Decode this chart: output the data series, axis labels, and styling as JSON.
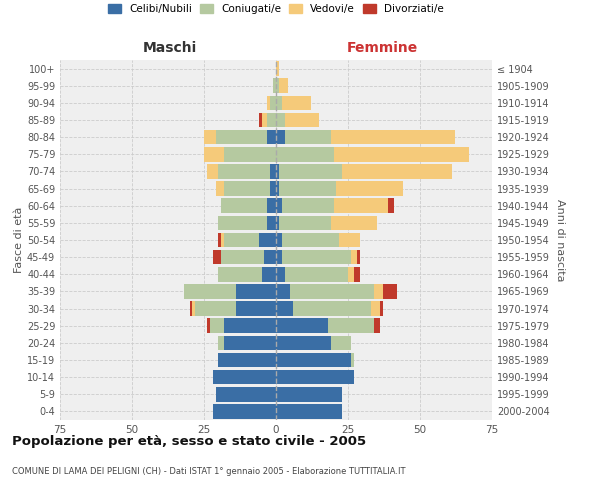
{
  "age_groups": [
    "0-4",
    "5-9",
    "10-14",
    "15-19",
    "20-24",
    "25-29",
    "30-34",
    "35-39",
    "40-44",
    "45-49",
    "50-54",
    "55-59",
    "60-64",
    "65-69",
    "70-74",
    "75-79",
    "80-84",
    "85-89",
    "90-94",
    "95-99",
    "100+"
  ],
  "birth_years": [
    "2000-2004",
    "1995-1999",
    "1990-1994",
    "1985-1989",
    "1980-1984",
    "1975-1979",
    "1970-1974",
    "1965-1969",
    "1960-1964",
    "1955-1959",
    "1950-1954",
    "1945-1949",
    "1940-1944",
    "1935-1939",
    "1930-1934",
    "1925-1929",
    "1920-1924",
    "1915-1919",
    "1910-1914",
    "1905-1909",
    "≤ 1904"
  ],
  "maschi": {
    "celibe": [
      22,
      21,
      22,
      20,
      18,
      18,
      14,
      14,
      5,
      4,
      6,
      3,
      3,
      2,
      2,
      0,
      3,
      0,
      0,
      0,
      0
    ],
    "coniugato": [
      0,
      0,
      0,
      0,
      2,
      5,
      14,
      18,
      15,
      15,
      12,
      17,
      16,
      16,
      18,
      18,
      18,
      3,
      2,
      1,
      0
    ],
    "vedovo": [
      0,
      0,
      0,
      0,
      0,
      0,
      1,
      0,
      0,
      0,
      1,
      0,
      0,
      3,
      4,
      7,
      4,
      2,
      1,
      0,
      0
    ],
    "divorziato": [
      0,
      0,
      0,
      0,
      0,
      1,
      1,
      0,
      0,
      3,
      1,
      0,
      0,
      0,
      0,
      0,
      0,
      1,
      0,
      0,
      0
    ]
  },
  "femmine": {
    "nubile": [
      23,
      23,
      27,
      26,
      19,
      18,
      6,
      5,
      3,
      2,
      2,
      1,
      2,
      1,
      1,
      0,
      3,
      0,
      0,
      0,
      0
    ],
    "coniugata": [
      0,
      0,
      0,
      1,
      7,
      16,
      27,
      29,
      22,
      24,
      20,
      18,
      18,
      20,
      22,
      20,
      16,
      3,
      2,
      1,
      0
    ],
    "vedova": [
      0,
      0,
      0,
      0,
      0,
      0,
      3,
      3,
      2,
      2,
      7,
      16,
      19,
      23,
      38,
      47,
      43,
      12,
      10,
      3,
      1
    ],
    "divorziata": [
      0,
      0,
      0,
      0,
      0,
      2,
      1,
      5,
      2,
      1,
      0,
      0,
      2,
      0,
      0,
      0,
      0,
      0,
      0,
      0,
      0
    ]
  },
  "colors": {
    "celibe": "#3A6EA5",
    "coniugato": "#B5C9A0",
    "vedovo": "#F5CA7A",
    "divorziato": "#C0392B"
  },
  "legend_labels": [
    "Celibi/Nubili",
    "Coniugati/e",
    "Vedovi/e",
    "Divorziati/e"
  ],
  "xlabel_left": "Maschi",
  "xlabel_right": "Femmine",
  "ylabel_left": "Fasce di età",
  "ylabel_right": "Anni di nascita",
  "title": "Popolazione per età, sesso e stato civile - 2005",
  "subtitle": "COMUNE DI LAMA DEI PELIGNI (CH) - Dati ISTAT 1° gennaio 2005 - Elaborazione TUTTITALIA.IT",
  "xlim": 75,
  "bg_color": "#efefef",
  "grid_color": "#cccccc"
}
